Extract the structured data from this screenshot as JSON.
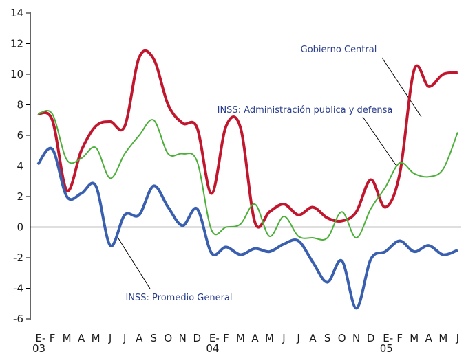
{
  "chart_data": {
    "type": "line",
    "categories": [
      "E-",
      "F",
      "M",
      "A",
      "M",
      "J",
      "J",
      "A",
      "S",
      "O",
      "N",
      "D",
      "E-",
      "F",
      "M",
      "A",
      "M",
      "J",
      "J",
      "A",
      "S",
      "O",
      "N",
      "D",
      "E-",
      "F",
      "M",
      "A",
      "M",
      "J"
    ],
    "years": [
      "03",
      "04",
      "05"
    ],
    "series": [
      {
        "name": "Gobierno Central",
        "color": "#c0172e",
        "values": [
          7.4,
          7.0,
          2.4,
          5.0,
          6.6,
          6.9,
          6.6,
          11.1,
          11.0,
          8.0,
          6.8,
          6.5,
          2.2,
          6.6,
          6.5,
          0.3,
          1.0,
          1.5,
          0.8,
          1.3,
          0.6,
          0.4,
          1.0,
          3.1,
          1.3,
          3.5,
          10.3,
          9.2,
          10.0,
          10.1
        ]
      },
      {
        "name": "INSS: Administración publica y defensa",
        "color": "#4caf3a",
        "values": [
          7.4,
          7.4,
          4.4,
          4.5,
          5.2,
          3.2,
          4.8,
          6.0,
          7.0,
          4.8,
          4.8,
          4.3,
          -0.2,
          0.0,
          0.2,
          1.5,
          -0.6,
          0.7,
          -0.6,
          -0.7,
          -0.7,
          1.0,
          -0.7,
          1.2,
          2.6,
          4.2,
          3.5,
          3.3,
          3.8,
          6.2
        ]
      },
      {
        "name": "INSS: Promedio General",
        "color": "#3a5fae",
        "values": [
          4.1,
          5.1,
          2.0,
          2.2,
          2.7,
          -1.2,
          0.8,
          0.8,
          2.7,
          1.3,
          0.1,
          1.2,
          -1.7,
          -1.3,
          -1.8,
          -1.4,
          -1.6,
          -1.1,
          -0.9,
          -2.3,
          -3.6,
          -2.2,
          -5.3,
          -2.1,
          -1.6,
          -0.9,
          -1.6,
          -1.2,
          -1.8,
          -1.5
        ]
      }
    ],
    "ylim": [
      -6,
      14
    ],
    "yticks": [
      -6,
      -4,
      -2,
      0,
      2,
      4,
      6,
      8,
      10,
      12,
      14
    ]
  }
}
